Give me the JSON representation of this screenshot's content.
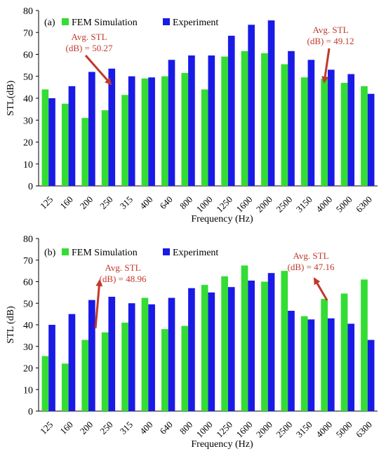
{
  "chart_data": [
    {
      "type": "bar",
      "panel_label": "(a)",
      "categories": [
        "125",
        "160",
        "200",
        "250",
        "315",
        "400",
        "640",
        "800",
        "1000",
        "1250",
        "1600",
        "2000",
        "2500",
        "3150",
        "4000",
        "5000",
        "6300"
      ],
      "series": [
        {
          "name": "FEM Simulation",
          "color": "#33dd33",
          "values": [
            44,
            37.5,
            31,
            34.5,
            41.5,
            49,
            50,
            51.5,
            44,
            59,
            61.5,
            60.5,
            55.5,
            49.5,
            49,
            47,
            45.5
          ]
        },
        {
          "name": "Experiment",
          "color": "#1a1ae6",
          "values": [
            40,
            45.5,
            52,
            53.5,
            50,
            49.5,
            57.5,
            59.5,
            59.5,
            68.5,
            73.5,
            75.5,
            61.5,
            57.5,
            53,
            51,
            42
          ]
        }
      ],
      "xlabel": "Frequency (Hz)",
      "ylabel": "STL(dB)",
      "ylim": [
        0,
        80
      ],
      "ytick_step": 10,
      "legend_position": "top-left",
      "annotations": [
        {
          "line1": "Avg. STL",
          "line2": "(dB) = 50.27",
          "arrow_at_category": "250",
          "arrow_to_value": 36,
          "color": "#c0392b"
        },
        {
          "line1": "Avg. STL",
          "line2": "(dB) = 49.12",
          "arrow_at_category": "4000",
          "arrow_to_value": 47,
          "color": "#c0392b"
        }
      ]
    },
    {
      "type": "bar",
      "panel_label": "(b)",
      "categories": [
        "125",
        "160",
        "200",
        "250",
        "315",
        "400",
        "640",
        "800",
        "1000",
        "1250",
        "1600",
        "2000",
        "2500",
        "3150",
        "4000",
        "5000",
        "6300"
      ],
      "series": [
        {
          "name": "FEM Simulation",
          "color": "#33dd33",
          "values": [
            25.5,
            22,
            33,
            36.5,
            41,
            52.5,
            38,
            39.5,
            58.5,
            62.5,
            67.5,
            60,
            65,
            44,
            52,
            54.5,
            61
          ]
        },
        {
          "name": "Experiment",
          "color": "#1a1ae6",
          "values": [
            40,
            45,
            51.5,
            53,
            50,
            49.5,
            52.5,
            57,
            55,
            57.5,
            60.5,
            64,
            46.5,
            42.5,
            43,
            40.5,
            33
          ]
        }
      ],
      "xlabel": "Frequency (Hz)",
      "ylabel": "STL (dB)",
      "ylim": [
        0,
        80
      ],
      "ytick_step": 10,
      "legend_position": "top-left",
      "annotations": [
        {
          "line1": "Avg. STL",
          "line2": "(dB) = 48.96",
          "arrow_at_category": "200",
          "arrow_to_value": 48,
          "color": "#c0392b"
        },
        {
          "line1": "Avg. STL",
          "line2": "(dB) = 47.16",
          "arrow_at_category": "4000",
          "arrow_to_value": 49,
          "color": "#c0392b"
        }
      ]
    }
  ]
}
